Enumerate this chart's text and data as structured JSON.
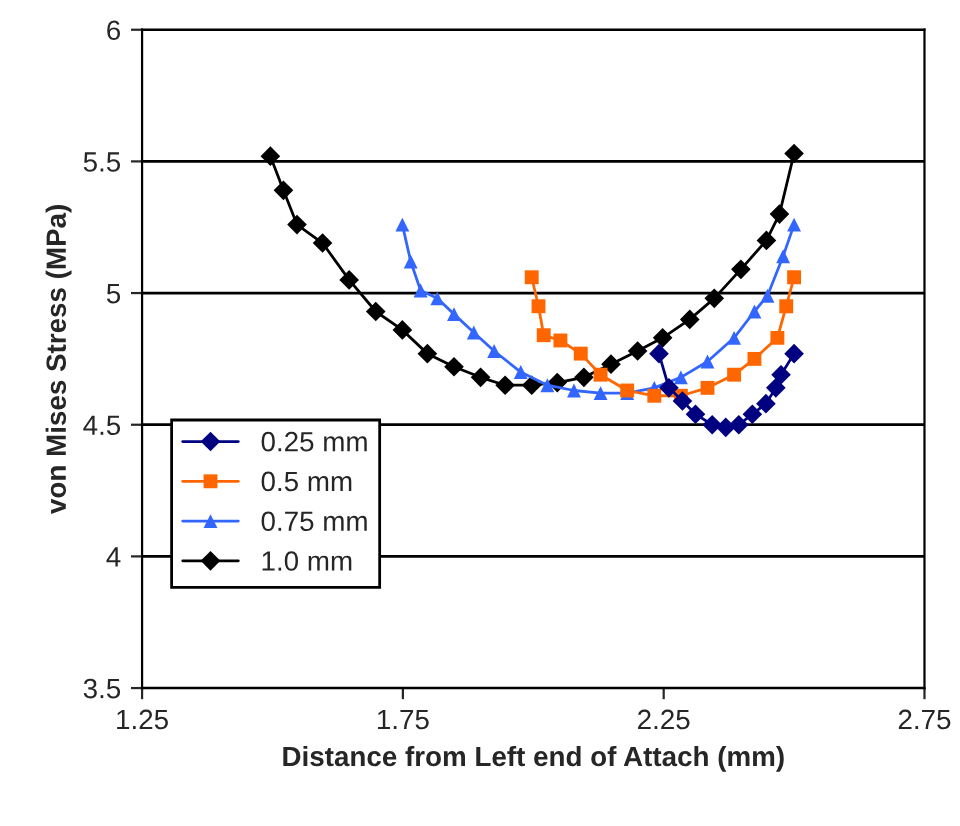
{
  "chart_data": {
    "type": "line",
    "xlabel": "Distance from Left end of Attach (mm)",
    "ylabel": "von Mises Stress (MPa)",
    "xlim": [
      1.25,
      2.75
    ],
    "xticks": [
      1.25,
      1.75,
      2.25,
      2.75
    ],
    "ylim": [
      3.5,
      6
    ],
    "yticks": [
      3.5,
      4,
      4.5,
      5,
      5.5,
      6
    ],
    "grid": "y",
    "legend": "left",
    "series": [
      {
        "name": "0.25 mm",
        "color": "#000080",
        "marker": "diamond",
        "x": [
          2.241,
          2.26,
          2.286,
          2.311,
          2.343,
          2.369,
          2.394,
          2.42,
          2.446,
          2.465,
          2.475,
          2.5
        ],
        "values": [
          4.77,
          4.64,
          4.59,
          4.54,
          4.5,
          4.49,
          4.5,
          4.54,
          4.58,
          4.64,
          4.69,
          4.77
        ]
      },
      {
        "name": "0.5 mm",
        "color": "#ff6600",
        "marker": "square",
        "x": [
          1.997,
          2.01,
          2.02,
          2.052,
          2.091,
          2.129,
          2.18,
          2.232,
          2.283,
          2.334,
          2.385,
          2.424,
          2.468,
          2.485,
          2.5
        ],
        "values": [
          5.06,
          4.95,
          4.84,
          4.82,
          4.77,
          4.69,
          4.63,
          4.61,
          4.61,
          4.64,
          4.69,
          4.75,
          4.83,
          4.95,
          5.06
        ]
      },
      {
        "name": "0.75 mm",
        "color": "#3366ff",
        "marker": "triangle",
        "x": [
          1.749,
          1.765,
          1.784,
          1.816,
          1.848,
          1.886,
          1.925,
          1.976,
          2.027,
          2.078,
          2.129,
          2.18,
          2.232,
          2.283,
          2.334,
          2.385,
          2.424,
          2.449,
          2.479,
          2.5
        ],
        "values": [
          5.26,
          5.12,
          5.01,
          4.98,
          4.92,
          4.85,
          4.78,
          4.7,
          4.65,
          4.63,
          4.62,
          4.62,
          4.64,
          4.68,
          4.74,
          4.83,
          4.93,
          4.99,
          5.14,
          5.26
        ]
      },
      {
        "name": "1.0 mm",
        "color": "#000000",
        "marker": "diamond",
        "x": [
          1.496,
          1.521,
          1.547,
          1.596,
          1.647,
          1.698,
          1.749,
          1.797,
          1.848,
          1.899,
          1.946,
          1.997,
          2.046,
          2.097,
          2.149,
          2.2,
          2.248,
          2.3,
          2.347,
          2.398,
          2.447,
          2.472,
          2.5
        ],
        "values": [
          5.52,
          5.39,
          5.26,
          5.19,
          5.05,
          4.93,
          4.86,
          4.77,
          4.72,
          4.68,
          4.65,
          4.65,
          4.66,
          4.68,
          4.73,
          4.78,
          4.83,
          4.9,
          4.98,
          5.09,
          5.2,
          5.3,
          5.53
        ]
      }
    ]
  }
}
